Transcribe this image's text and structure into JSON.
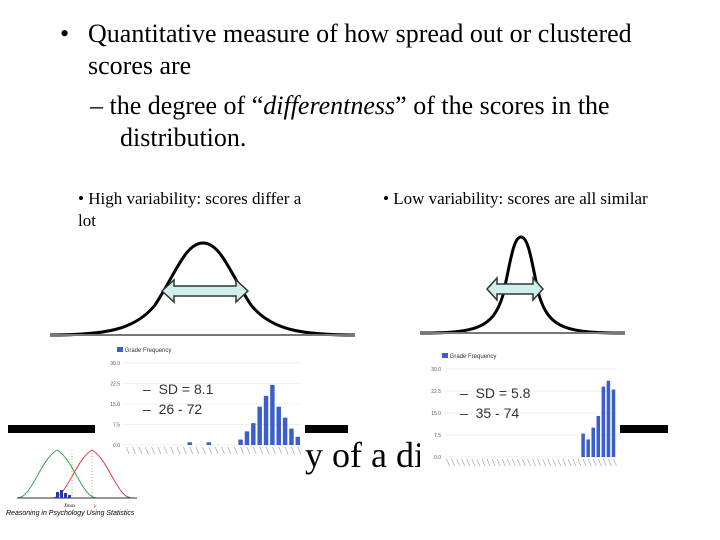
{
  "bullets": {
    "main_text": "Quantitative measure of how spread out or clustered scores are",
    "sub_prefix": "– the degree of “",
    "sub_emphasis": "differentness",
    "sub_suffix": "” of the scores in the distribution.",
    "high_var": "High variability: scores differ a lot",
    "low_var": "Low variability: scores are all similar"
  },
  "left_chart": {
    "legend": "Grade Frequency",
    "sd_label": "SD = 8.1",
    "range_label": "26 - 72",
    "y_ticks": [
      "30.0",
      "22.5",
      "15.0",
      "7.5",
      "0.0"
    ],
    "ylim": [
      0,
      30
    ],
    "values": [
      0,
      0,
      0,
      0,
      0,
      0,
      0,
      0,
      0,
      0,
      1,
      0,
      0,
      1,
      0,
      0,
      0,
      0,
      2,
      5,
      8,
      14,
      18,
      22,
      14,
      10,
      6,
      3
    ]
  },
  "right_chart": {
    "legend": "Grade Frequency",
    "sd_label": "SD = 5.8",
    "range_label": "35 - 74",
    "y_ticks": [
      "30.0",
      "22.5",
      "15.0",
      "7.5",
      "0.0"
    ],
    "ylim": [
      0,
      30
    ],
    "values": [
      0,
      0,
      0,
      0,
      0,
      0,
      0,
      0,
      0,
      0,
      0,
      0,
      0,
      0,
      0,
      0,
      0,
      0,
      0,
      0,
      0,
      0,
      0,
      0,
      0,
      0,
      0,
      8,
      6,
      10,
      14,
      24,
      26,
      23
    ]
  },
  "title_fragment": "y of a di",
  "footer": "Reasoning in Psychology Using Statistics",
  "mini_labels": {
    "a": "Xmax",
    "b": "μ"
  },
  "colors": {
    "bar": "#3a5fcd",
    "arrow_fill": "#cfeeee",
    "arrow_stroke": "#333333"
  }
}
